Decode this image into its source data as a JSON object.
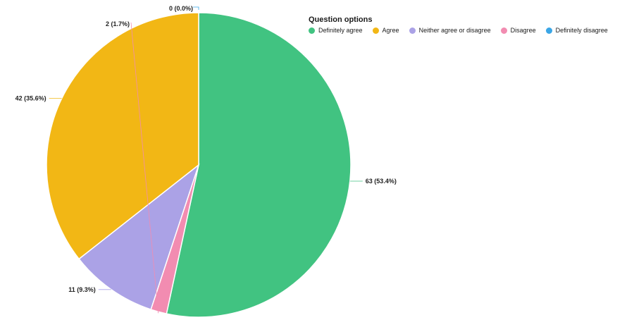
{
  "chart_data": {
    "type": "pie",
    "legend_title": "Question options",
    "legend_position": "top-right",
    "slices": [
      {
        "name": "Definitely agree",
        "value": 63,
        "label": "63 (53.4%)",
        "color": "#41c381"
      },
      {
        "name": "Disagree",
        "value": 2,
        "label": "2 (1.7%)",
        "color": "#f28cb1"
      },
      {
        "name": "Neither agree or disagree",
        "value": 11,
        "label": "11 (9.3%)",
        "color": "#aba2e6"
      },
      {
        "name": "Agree",
        "value": 42,
        "label": "42 (35.6%)",
        "color": "#f2b715"
      },
      {
        "name": "Definitely disagree",
        "value": 0,
        "label": "0 (0.0%)",
        "color": "#3aa6e6"
      }
    ],
    "legend_order": [
      "Definitely agree",
      "Agree",
      "Neither agree or disagree",
      "Disagree",
      "Definitely disagree"
    ]
  }
}
